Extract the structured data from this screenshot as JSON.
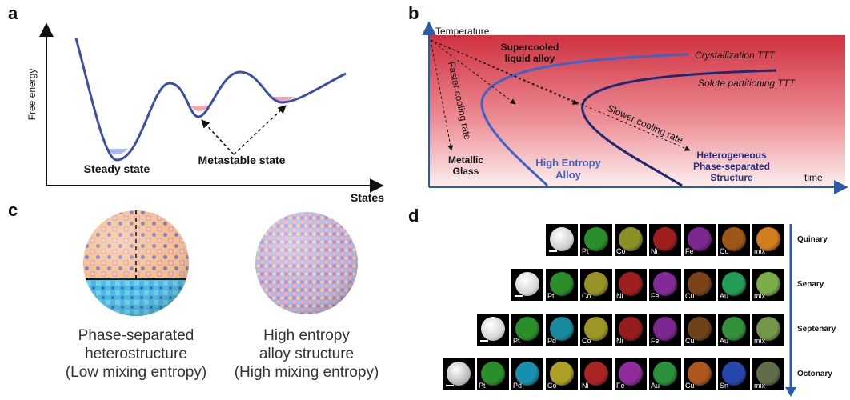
{
  "panel_letters": {
    "a": "a",
    "b": "b",
    "c": "c",
    "d": "d"
  },
  "panel_a": {
    "ylabel": "Free energy",
    "xlabel": "States",
    "steady_label": "Steady state",
    "metastable_label": "Metastable state",
    "colors": {
      "curve": "#3b4fa8",
      "steady_fill": "#a8b8e8",
      "metastable_fill": "#f4a3b0"
    }
  },
  "panel_b": {
    "ylabel": "Temperature",
    "xlabel": "time",
    "supercooled": [
      "Supercooled",
      "liquid alloy"
    ],
    "faster_rate": "Faster cooling rate",
    "slower_rate": "Slower cooling rate",
    "crystallization": "Crystallization TTT",
    "solute": "Solute partitioning TTT",
    "metallic_glass": [
      "Metallic",
      "Glass"
    ],
    "hea": [
      "High Entropy",
      "Alloy"
    ],
    "hetero": [
      "Heterogeneous",
      "Phase-separated",
      "Structure"
    ],
    "colors": {
      "gradient_top": "#d0303f",
      "gradient_bottom": "#fdf0f0",
      "crystallization_curve": "#3e64c8",
      "solute_curve": "#1f2870",
      "hea_text": "#3e64c8",
      "hetero_text": "#2a2f80"
    }
  },
  "panel_c": {
    "left_caption": [
      "Phase-separated",
      "heterostructure",
      "(Low mixing entropy)"
    ],
    "right_caption": [
      "High entropy",
      "alloy structure",
      "(High mixing entropy)"
    ],
    "colors": {
      "left_top": "#f2c08a",
      "left_bottom": "#49b7e0",
      "right": "#c8a8d8"
    }
  },
  "panel_d": {
    "rows": [
      {
        "label": "Quinary",
        "tiles": [
          {
            "label": "",
            "color": "#cfcfcf",
            "bf": true
          },
          {
            "label": "Pt",
            "color": "#2f9e2f"
          },
          {
            "label": "Co",
            "color": "#9aa02a"
          },
          {
            "label": "Ni",
            "color": "#b02020"
          },
          {
            "label": "Fe",
            "color": "#8a2aa0"
          },
          {
            "label": "Cu",
            "color": "#b0601a"
          },
          {
            "label": "mix",
            "color": "#e88a20"
          }
        ]
      },
      {
        "label": "Senary",
        "tiles": [
          {
            "label": "",
            "color": "#d6d6d6",
            "bf": true
          },
          {
            "label": "Pt",
            "color": "#2f9e2f"
          },
          {
            "label": "Co",
            "color": "#a8a22a"
          },
          {
            "label": "Ni",
            "color": "#b02020"
          },
          {
            "label": "Fe",
            "color": "#9030a8"
          },
          {
            "label": "Cu",
            "color": "#8a4a1a"
          },
          {
            "label": "Au",
            "color": "#28b060"
          },
          {
            "label": "mix",
            "color": "#88c050"
          }
        ]
      },
      {
        "label": "Septenary",
        "tiles": [
          {
            "label": "",
            "color": "#d6d6d6",
            "bf": true
          },
          {
            "label": "Pt",
            "color": "#2f9e2f"
          },
          {
            "label": "Pd",
            "color": "#1a9ab0"
          },
          {
            "label": "Co",
            "color": "#b0a82a"
          },
          {
            "label": "Ni",
            "color": "#a82020"
          },
          {
            "label": "Fe",
            "color": "#8a2aa0"
          },
          {
            "label": "Cu",
            "color": "#7a4a1a"
          },
          {
            "label": "Au",
            "color": "#38a040"
          },
          {
            "label": "mix",
            "color": "#80a850"
          }
        ]
      },
      {
        "label": "Octonary",
        "tiles": [
          {
            "label": "",
            "color": "#bdbdbd",
            "bf": true
          },
          {
            "label": "Pt",
            "color": "#2f9e2f"
          },
          {
            "label": "Pd",
            "color": "#1aa0c0"
          },
          {
            "label": "Co",
            "color": "#c0b02a"
          },
          {
            "label": "Ni",
            "color": "#c02828"
          },
          {
            "label": "Fe",
            "color": "#a030b0"
          },
          {
            "label": "Au",
            "color": "#30a040"
          },
          {
            "label": "Cu",
            "color": "#c06020"
          },
          {
            "label": "Sn",
            "color": "#2a50c0"
          },
          {
            "label": "mix",
            "color": "#6a7a50"
          }
        ]
      }
    ],
    "colors": {
      "arrow": "#2a5aa8"
    }
  }
}
